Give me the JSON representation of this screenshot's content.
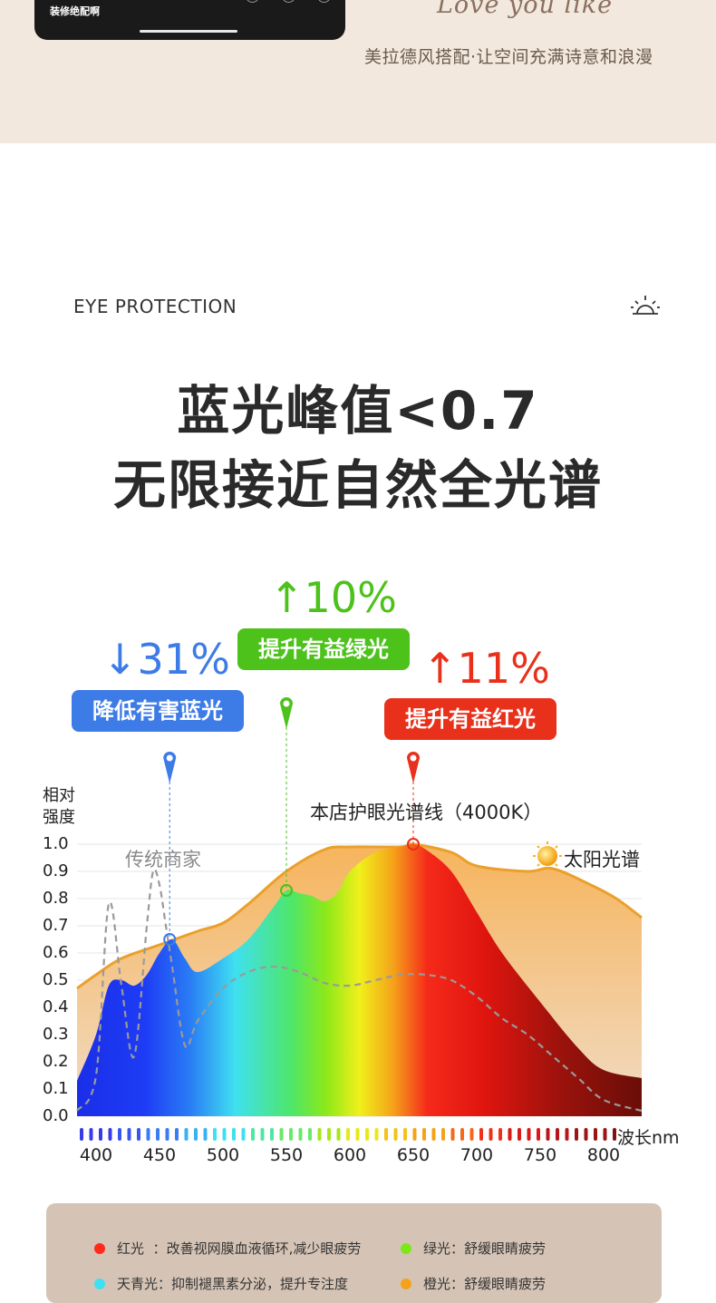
{
  "header": {
    "phone_caption": "装修绝配啊",
    "script_title": "Love you like",
    "tagline": "美拉德风搭配·让空间充满诗意和浪漫"
  },
  "section": {
    "eyebrow": "EYE PROTECTION",
    "headline_1": "蓝光峰值<0.7",
    "headline_2": "无限接近自然全光谱"
  },
  "callouts": {
    "blue": {
      "percent": "31%",
      "arrow": "↓",
      "label": "降低有害蓝光",
      "color": "#3d7be6"
    },
    "green": {
      "percent": "10%",
      "arrow": "↑",
      "label": "提升有益绿光",
      "color": "#4cc21a"
    },
    "red": {
      "percent": "11%",
      "arrow": "↑",
      "label": "提升有益红光",
      "color": "#e8301a"
    }
  },
  "annotations": {
    "store_line": "本店护眼光谱线（4000K）",
    "traditional": "传统商家",
    "sun_spectrum": "太阳光谱"
  },
  "chart_data": {
    "type": "area",
    "ylabel": "相对\n强度",
    "xlabel": "波长nm",
    "y_ticks": [
      "1.0",
      "0.9",
      "0.8",
      "0.7",
      "0.6",
      "0.5",
      "0.4",
      "0.3",
      "0.2",
      "0.1",
      "0.0"
    ],
    "x_ticks": [
      "400",
      "450",
      "500",
      "550",
      "600",
      "650",
      "700",
      "750",
      "800"
    ],
    "xlim": [
      385,
      830
    ],
    "ylim": [
      0,
      1.0
    ],
    "series": [
      {
        "name": "太阳光谱",
        "x": [
          385,
          400,
          420,
          450,
          480,
          500,
          520,
          550,
          580,
          600,
          640,
          650,
          680,
          700,
          740,
          760,
          790,
          810,
          830
        ],
        "values": [
          0.47,
          0.52,
          0.58,
          0.63,
          0.68,
          0.71,
          0.78,
          0.9,
          0.98,
          0.99,
          0.99,
          1.0,
          0.97,
          0.92,
          0.9,
          0.91,
          0.85,
          0.8,
          0.73
        ]
      },
      {
        "name": "本店护眼光谱线（4000K）",
        "x": [
          385,
          400,
          410,
          420,
          430,
          440,
          450,
          460,
          470,
          480,
          500,
          520,
          540,
          550,
          560,
          570,
          580,
          590,
          600,
          620,
          640,
          650,
          660,
          680,
          700,
          720,
          750,
          780,
          800,
          830
        ],
        "values": [
          0.13,
          0.3,
          0.48,
          0.5,
          0.48,
          0.52,
          0.6,
          0.65,
          0.58,
          0.53,
          0.58,
          0.65,
          0.77,
          0.83,
          0.82,
          0.81,
          0.79,
          0.82,
          0.9,
          0.97,
          0.99,
          1.0,
          0.98,
          0.9,
          0.75,
          0.6,
          0.42,
          0.25,
          0.17,
          0.14
        ]
      },
      {
        "name": "传统商家",
        "x": [
          385,
          400,
          410,
          420,
          430,
          440,
          445,
          450,
          455,
          460,
          470,
          480,
          500,
          520,
          540,
          560,
          580,
          600,
          620,
          640,
          660,
          680,
          700,
          720,
          740,
          760,
          780,
          800,
          830
        ],
        "values": [
          0.02,
          0.15,
          0.78,
          0.48,
          0.22,
          0.7,
          0.9,
          0.85,
          0.7,
          0.55,
          0.26,
          0.35,
          0.47,
          0.53,
          0.55,
          0.53,
          0.49,
          0.48,
          0.5,
          0.52,
          0.52,
          0.5,
          0.44,
          0.36,
          0.3,
          0.22,
          0.14,
          0.06,
          0.02
        ]
      }
    ],
    "markers": [
      {
        "x": 458,
        "y": 0.65,
        "color": "#3d7be6"
      },
      {
        "x": 550,
        "y": 0.83,
        "color": "#4cc21a"
      },
      {
        "x": 650,
        "y": 1.0,
        "color": "#e8301a"
      }
    ],
    "grid": true
  },
  "legend": [
    {
      "color": "#ff2a1a",
      "name": "红光",
      "desc": "改善视网膜血液循环,减少眼疲劳"
    },
    {
      "color": "#7be81a",
      "name": "绿光",
      "desc": "舒缓眼睛疲劳"
    },
    {
      "color": "#3fe0f0",
      "name": "天青光",
      "desc": "抑制褪黑素分泌，提升专注度"
    },
    {
      "color": "#f5a21a",
      "name": "橙光",
      "desc": "舒缓眼睛疲劳"
    }
  ]
}
